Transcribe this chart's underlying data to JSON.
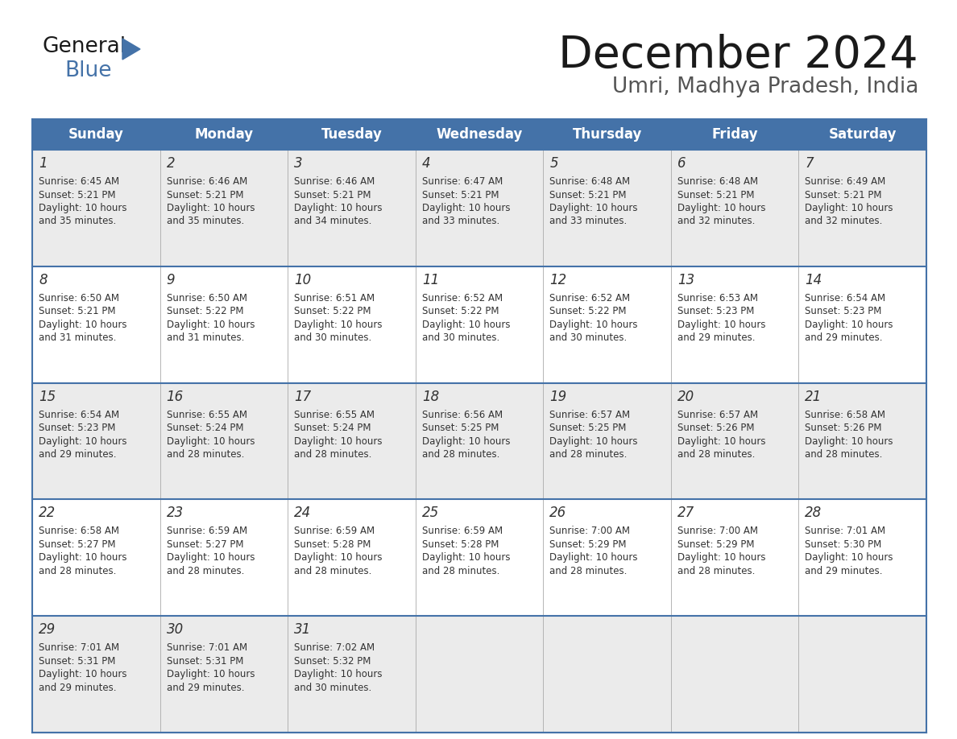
{
  "title": "December 2024",
  "subtitle": "Umri, Madhya Pradesh, India",
  "header_color": "#4472a8",
  "header_text_color": "#ffffff",
  "bg_color": "#ffffff",
  "row_even_color": "#ebebeb",
  "row_odd_color": "#ffffff",
  "border_color": "#4472a8",
  "cell_line_color": "#aaaaaa",
  "text_color": "#333333",
  "days_of_week": [
    "Sunday",
    "Monday",
    "Tuesday",
    "Wednesday",
    "Thursday",
    "Friday",
    "Saturday"
  ],
  "calendar_data": [
    [
      {
        "day": "1",
        "sunrise": "6:45 AM",
        "sunset": "5:21 PM",
        "daylight_h": "10 hours",
        "daylight_m": "and 35 minutes."
      },
      {
        "day": "2",
        "sunrise": "6:46 AM",
        "sunset": "5:21 PM",
        "daylight_h": "10 hours",
        "daylight_m": "and 35 minutes."
      },
      {
        "day": "3",
        "sunrise": "6:46 AM",
        "sunset": "5:21 PM",
        "daylight_h": "10 hours",
        "daylight_m": "and 34 minutes."
      },
      {
        "day": "4",
        "sunrise": "6:47 AM",
        "sunset": "5:21 PM",
        "daylight_h": "10 hours",
        "daylight_m": "and 33 minutes."
      },
      {
        "day": "5",
        "sunrise": "6:48 AM",
        "sunset": "5:21 PM",
        "daylight_h": "10 hours",
        "daylight_m": "and 33 minutes."
      },
      {
        "day": "6",
        "sunrise": "6:48 AM",
        "sunset": "5:21 PM",
        "daylight_h": "10 hours",
        "daylight_m": "and 32 minutes."
      },
      {
        "day": "7",
        "sunrise": "6:49 AM",
        "sunset": "5:21 PM",
        "daylight_h": "10 hours",
        "daylight_m": "and 32 minutes."
      }
    ],
    [
      {
        "day": "8",
        "sunrise": "6:50 AM",
        "sunset": "5:21 PM",
        "daylight_h": "10 hours",
        "daylight_m": "and 31 minutes."
      },
      {
        "day": "9",
        "sunrise": "6:50 AM",
        "sunset": "5:22 PM",
        "daylight_h": "10 hours",
        "daylight_m": "and 31 minutes."
      },
      {
        "day": "10",
        "sunrise": "6:51 AM",
        "sunset": "5:22 PM",
        "daylight_h": "10 hours",
        "daylight_m": "and 30 minutes."
      },
      {
        "day": "11",
        "sunrise": "6:52 AM",
        "sunset": "5:22 PM",
        "daylight_h": "10 hours",
        "daylight_m": "and 30 minutes."
      },
      {
        "day": "12",
        "sunrise": "6:52 AM",
        "sunset": "5:22 PM",
        "daylight_h": "10 hours",
        "daylight_m": "and 30 minutes."
      },
      {
        "day": "13",
        "sunrise": "6:53 AM",
        "sunset": "5:23 PM",
        "daylight_h": "10 hours",
        "daylight_m": "and 29 minutes."
      },
      {
        "day": "14",
        "sunrise": "6:54 AM",
        "sunset": "5:23 PM",
        "daylight_h": "10 hours",
        "daylight_m": "and 29 minutes."
      }
    ],
    [
      {
        "day": "15",
        "sunrise": "6:54 AM",
        "sunset": "5:23 PM",
        "daylight_h": "10 hours",
        "daylight_m": "and 29 minutes."
      },
      {
        "day": "16",
        "sunrise": "6:55 AM",
        "sunset": "5:24 PM",
        "daylight_h": "10 hours",
        "daylight_m": "and 28 minutes."
      },
      {
        "day": "17",
        "sunrise": "6:55 AM",
        "sunset": "5:24 PM",
        "daylight_h": "10 hours",
        "daylight_m": "and 28 minutes."
      },
      {
        "day": "18",
        "sunrise": "6:56 AM",
        "sunset": "5:25 PM",
        "daylight_h": "10 hours",
        "daylight_m": "and 28 minutes."
      },
      {
        "day": "19",
        "sunrise": "6:57 AM",
        "sunset": "5:25 PM",
        "daylight_h": "10 hours",
        "daylight_m": "and 28 minutes."
      },
      {
        "day": "20",
        "sunrise": "6:57 AM",
        "sunset": "5:26 PM",
        "daylight_h": "10 hours",
        "daylight_m": "and 28 minutes."
      },
      {
        "day": "21",
        "sunrise": "6:58 AM",
        "sunset": "5:26 PM",
        "daylight_h": "10 hours",
        "daylight_m": "and 28 minutes."
      }
    ],
    [
      {
        "day": "22",
        "sunrise": "6:58 AM",
        "sunset": "5:27 PM",
        "daylight_h": "10 hours",
        "daylight_m": "and 28 minutes."
      },
      {
        "day": "23",
        "sunrise": "6:59 AM",
        "sunset": "5:27 PM",
        "daylight_h": "10 hours",
        "daylight_m": "and 28 minutes."
      },
      {
        "day": "24",
        "sunrise": "6:59 AM",
        "sunset": "5:28 PM",
        "daylight_h": "10 hours",
        "daylight_m": "and 28 minutes."
      },
      {
        "day": "25",
        "sunrise": "6:59 AM",
        "sunset": "5:28 PM",
        "daylight_h": "10 hours",
        "daylight_m": "and 28 minutes."
      },
      {
        "day": "26",
        "sunrise": "7:00 AM",
        "sunset": "5:29 PM",
        "daylight_h": "10 hours",
        "daylight_m": "and 28 minutes."
      },
      {
        "day": "27",
        "sunrise": "7:00 AM",
        "sunset": "5:29 PM",
        "daylight_h": "10 hours",
        "daylight_m": "and 28 minutes."
      },
      {
        "day": "28",
        "sunrise": "7:01 AM",
        "sunset": "5:30 PM",
        "daylight_h": "10 hours",
        "daylight_m": "and 29 minutes."
      }
    ],
    [
      {
        "day": "29",
        "sunrise": "7:01 AM",
        "sunset": "5:31 PM",
        "daylight_h": "10 hours",
        "daylight_m": "and 29 minutes."
      },
      {
        "day": "30",
        "sunrise": "7:01 AM",
        "sunset": "5:31 PM",
        "daylight_h": "10 hours",
        "daylight_m": "and 29 minutes."
      },
      {
        "day": "31",
        "sunrise": "7:02 AM",
        "sunset": "5:32 PM",
        "daylight_h": "10 hours",
        "daylight_m": "and 30 minutes."
      },
      null,
      null,
      null,
      null
    ]
  ],
  "logo_general_color": "#1a1a1a",
  "logo_blue_color": "#4472a8",
  "logo_triangle_color": "#4472a8",
  "title_color": "#1a1a1a",
  "subtitle_color": "#555555"
}
